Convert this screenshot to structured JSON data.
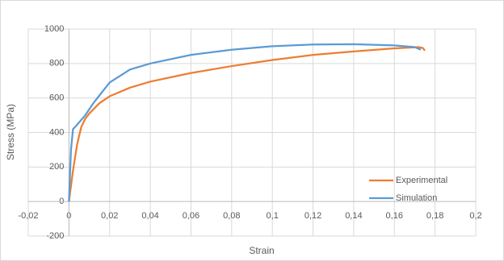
{
  "chart_data": {
    "type": "scatter-line",
    "x_label": "Strain",
    "y_label": "Stress (MPa)",
    "xlim": [
      -0.02,
      0.2
    ],
    "xticks": [
      {
        "value": -0.02,
        "label": "-0,02"
      },
      0,
      {
        "value": 0.02,
        "label": "0,02"
      },
      {
        "value": 0.04,
        "label": "0,04"
      },
      {
        "value": 0.06,
        "label": "0,06"
      },
      {
        "value": 0.08,
        "label": "0,08"
      },
      {
        "value": 0.1,
        "label": "0,1"
      },
      {
        "value": 0.12,
        "label": "0,12"
      },
      {
        "value": 0.14,
        "label": "0,14"
      },
      {
        "value": 0.16,
        "label": "0,16"
      },
      {
        "value": 0.18,
        "label": "0,18"
      },
      {
        "value": 0.2,
        "label": "0,2"
      }
    ],
    "ylim": [
      -200,
      1000
    ],
    "yticks": [
      -200,
      0,
      200,
      400,
      600,
      800,
      1000
    ],
    "grid": true,
    "legend": "lower-right",
    "series": [
      {
        "name": "Experimental",
        "color": "#ED7D31",
        "x": [
          0,
          0.002,
          0.004,
          0.006,
          0.008,
          0.01,
          0.015,
          0.02,
          0.03,
          0.04,
          0.06,
          0.08,
          0.1,
          0.12,
          0.14,
          0.16,
          0.172,
          0.174,
          0.175
        ],
        "values": [
          0,
          180,
          330,
          430,
          480,
          510,
          570,
          610,
          660,
          695,
          745,
          785,
          820,
          850,
          870,
          888,
          895,
          890,
          875
        ]
      },
      {
        "name": "Simulation",
        "color": "#5B9BD5",
        "x": [
          0,
          0.001,
          0.002,
          0.004,
          0.008,
          0.012,
          0.02,
          0.03,
          0.04,
          0.06,
          0.08,
          0.1,
          0.12,
          0.14,
          0.16,
          0.17,
          0.173
        ],
        "values": [
          0,
          300,
          420,
          445,
          500,
          570,
          690,
          765,
          800,
          850,
          880,
          900,
          910,
          912,
          905,
          895,
          880
        ]
      }
    ]
  }
}
